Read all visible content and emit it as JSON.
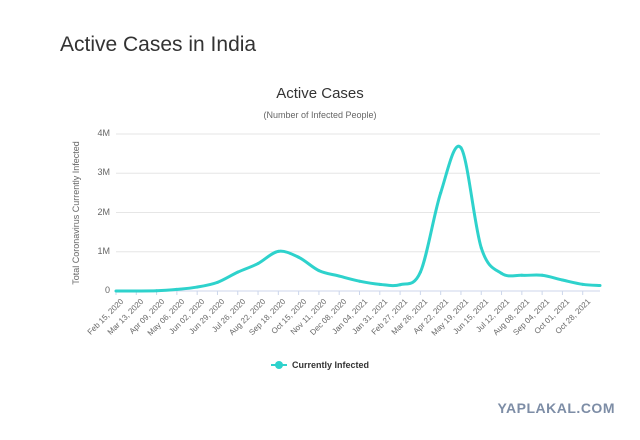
{
  "page": {
    "title": "Active Cases in India"
  },
  "colors": {
    "series": "#2ed2cc",
    "grid": "#e6e6e6",
    "axis": "#ccd6eb"
  },
  "watermark": "YAPLAKAL.COM",
  "chart_data": {
    "type": "line",
    "title": "Active Cases",
    "subtitle": "(Number of Infected People)",
    "ylabel": "Total Coronavirus Currently Infected",
    "xlabel": "",
    "ylim": [
      0,
      4000000
    ],
    "yticks": [
      0,
      1000000,
      2000000,
      3000000,
      4000000
    ],
    "ytick_labels": [
      "0",
      "1M",
      "2M",
      "3M",
      "4M"
    ],
    "grid": true,
    "legend": "bottom-center",
    "x_ticks": [
      "Feb 15, 2020",
      "Mar 13, 2020",
      "Apr 09, 2020",
      "May 06, 2020",
      "Jun 02, 2020",
      "Jun 29, 2020",
      "Jul 26, 2020",
      "Aug 22, 2020",
      "Sep 18, 2020",
      "Oct 15, 2020",
      "Nov 11, 2020",
      "Dec 08, 2020",
      "Jan 04, 2021",
      "Jan 31, 2021",
      "Feb 27, 2021",
      "Mar 26, 2021",
      "Apr 22, 2021",
      "May 19, 2021",
      "Jun 15, 2021",
      "Jul 12, 2021",
      "Aug 08, 2021",
      "Sep 04, 2021",
      "Oct 01, 2021",
      "Oct 28, 2021"
    ],
    "series": [
      {
        "name": "Currently Infected",
        "x": [
          "Feb 15, 2020",
          "Mar 13, 2020",
          "Apr 09, 2020",
          "May 06, 2020",
          "Jun 02, 2020",
          "Jun 29, 2020",
          "Jul 26, 2020",
          "Aug 22, 2020",
          "Sep 18, 2020",
          "Oct 15, 2020",
          "Nov 11, 2020",
          "Dec 08, 2020",
          "Jan 04, 2021",
          "Jan 31, 2021",
          "Feb 27, 2021",
          "Mar 26, 2021",
          "Apr 22, 2021",
          "May 19, 2021",
          "Jun 15, 2021",
          "Jul 12, 2021",
          "Aug 08, 2021",
          "Sep 04, 2021",
          "Oct 01, 2021",
          "Oct 28, 2021",
          "Nov 20, 2021"
        ],
        "values": [
          0,
          0,
          5000,
          40000,
          100000,
          220000,
          480000,
          700000,
          1010000,
          860000,
          520000,
          380000,
          250000,
          170000,
          160000,
          480000,
          2500000,
          3650000,
          1100000,
          450000,
          400000,
          400000,
          280000,
          170000,
          140000
        ]
      }
    ]
  }
}
